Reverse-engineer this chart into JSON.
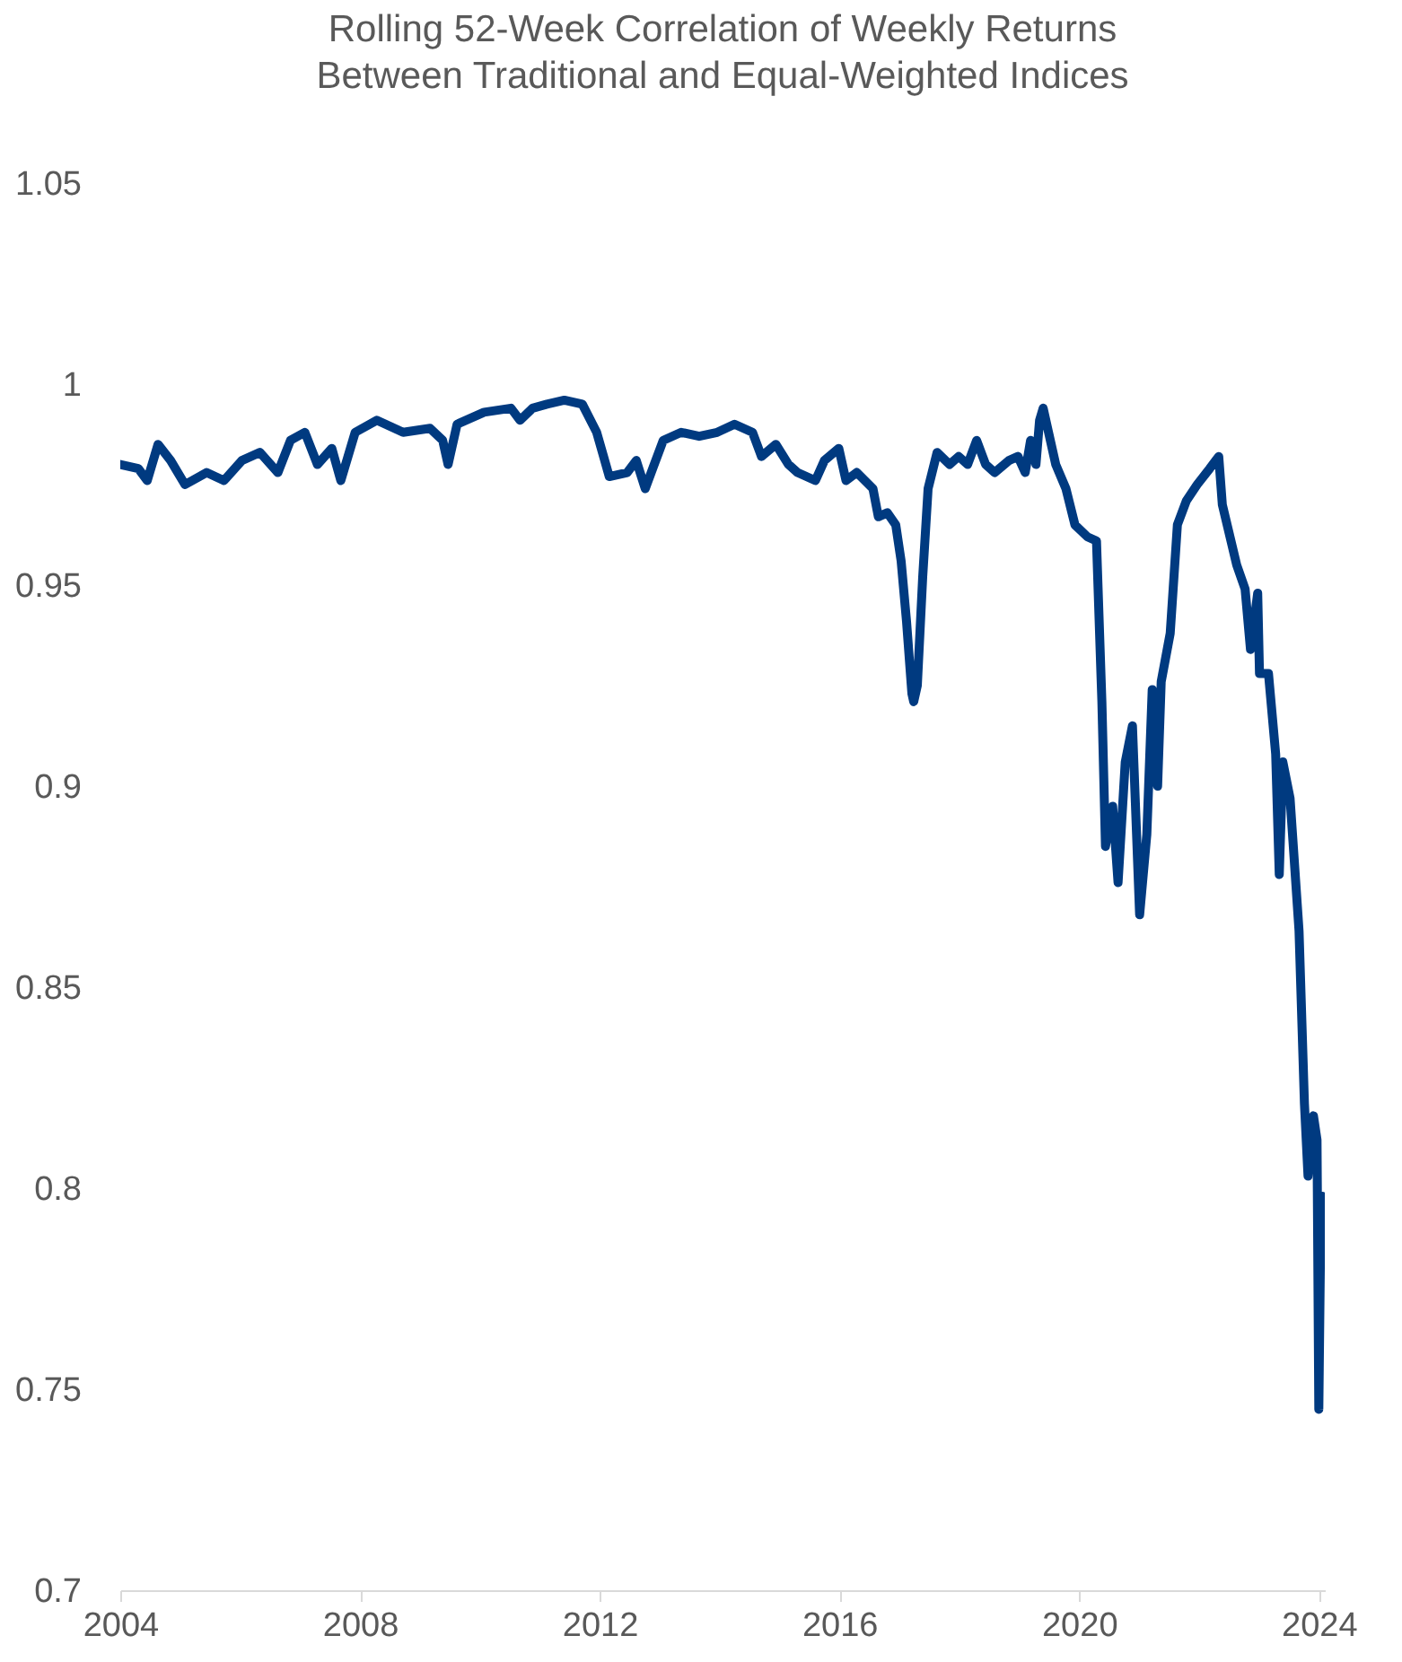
{
  "chart_data": {
    "type": "line",
    "title": "Rolling 52-Week Correlation of Weekly Returns\nBetween Traditional and Equal-Weighted Indices",
    "x": [
      2004.0,
      2004.3,
      2004.45,
      2004.63,
      2004.84,
      2005.08,
      2005.44,
      2005.73,
      2006.03,
      2006.33,
      2006.63,
      2006.84,
      2007.08,
      2007.29,
      2007.53,
      2007.68,
      2007.92,
      2008.28,
      2008.72,
      2009.17,
      2009.38,
      2009.47,
      2009.62,
      2010.07,
      2010.52,
      2010.67,
      2010.88,
      2011.12,
      2011.41,
      2011.71,
      2011.95,
      2012.16,
      2012.46,
      2012.61,
      2012.76,
      2012.91,
      2013.06,
      2013.36,
      2013.66,
      2013.96,
      2014.25,
      2014.55,
      2014.7,
      2014.94,
      2015.15,
      2015.3,
      2015.6,
      2015.75,
      2015.99,
      2016.11,
      2016.29,
      2016.56,
      2016.65,
      2016.8,
      2016.94,
      2017.03,
      2017.12,
      2017.21,
      2017.24,
      2017.3,
      2017.39,
      2017.48,
      2017.63,
      2017.84,
      2017.99,
      2018.14,
      2018.29,
      2018.44,
      2018.59,
      2018.83,
      2018.98,
      2019.1,
      2019.19,
      2019.28,
      2019.34,
      2019.4,
      2019.49,
      2019.61,
      2019.78,
      2019.93,
      2020.14,
      2020.29,
      2020.38,
      2020.44,
      2020.56,
      2020.65,
      2020.77,
      2020.89,
      2021.01,
      2021.13,
      2021.22,
      2021.31,
      2021.37,
      2021.52,
      2021.64,
      2021.79,
      2021.97,
      2022.18,
      2022.33,
      2022.39,
      2022.63,
      2022.77,
      2022.86,
      2022.98,
      2023.01,
      2023.16,
      2023.28,
      2023.34,
      2023.4,
      2023.52,
      2023.67,
      2023.76,
      2023.82,
      2023.91,
      2023.97,
      2024.0,
      2024.03,
      2024.06
    ],
    "series": [
      {
        "color": "#003a80",
        "values": [
          0.98,
          0.979,
          0.976,
          0.985,
          0.981,
          0.975,
          0.978,
          0.976,
          0.981,
          0.983,
          0.978,
          0.986,
          0.988,
          0.98,
          0.984,
          0.976,
          0.988,
          0.991,
          0.988,
          0.989,
          0.986,
          0.98,
          0.99,
          0.993,
          0.994,
          0.991,
          0.994,
          0.995,
          0.996,
          0.995,
          0.988,
          0.977,
          0.978,
          0.981,
          0.974,
          0.98,
          0.986,
          0.988,
          0.987,
          0.988,
          0.99,
          0.988,
          0.982,
          0.985,
          0.98,
          0.978,
          0.976,
          0.981,
          0.984,
          0.976,
          0.978,
          0.974,
          0.967,
          0.968,
          0.965,
          0.956,
          0.941,
          0.923,
          0.921,
          0.925,
          0.952,
          0.974,
          0.983,
          0.98,
          0.982,
          0.98,
          0.986,
          0.98,
          0.978,
          0.981,
          0.982,
          0.978,
          0.986,
          0.98,
          0.991,
          0.994,
          0.988,
          0.98,
          0.974,
          0.965,
          0.962,
          0.961,
          0.921,
          0.885,
          0.895,
          0.876,
          0.906,
          0.915,
          0.868,
          0.888,
          0.924,
          0.9,
          0.926,
          0.938,
          0.965,
          0.971,
          0.975,
          0.979,
          0.982,
          0.97,
          0.955,
          0.949,
          0.934,
          0.948,
          0.928,
          0.928,
          0.908,
          0.878,
          0.906,
          0.897,
          0.864,
          0.821,
          0.803,
          0.818,
          0.812,
          0.745,
          0.787,
          0.798
        ]
      }
    ],
    "xlim": [
      2004,
      2024.1
    ],
    "xticks": [
      2004,
      2008,
      2012,
      2016,
      2020,
      2024
    ],
    "ylim": [
      0.7,
      1.05
    ],
    "yticks": [
      0.7,
      0.75,
      0.8,
      0.85,
      0.9,
      0.95,
      1,
      1.05
    ],
    "grid": false,
    "marker": "none",
    "line_style": "solid"
  }
}
